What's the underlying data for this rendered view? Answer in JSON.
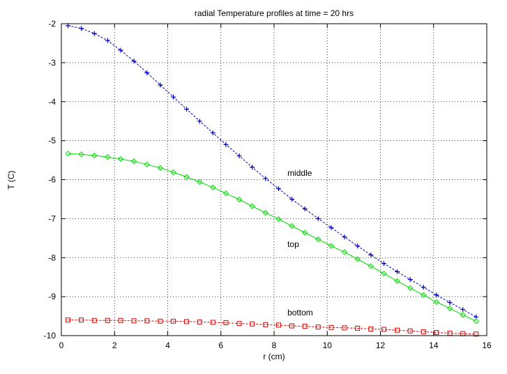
{
  "chart_data": {
    "type": "line",
    "title": "radial Temperature profiles at time = 20 hrs",
    "xlabel": "r (cm)",
    "ylabel": "T (C)",
    "xlim": [
      0,
      16
    ],
    "ylim": [
      -10,
      -2
    ],
    "xticks": [
      "0",
      "2",
      "4",
      "6",
      "8",
      "10",
      "12",
      "14",
      "16"
    ],
    "yticks": [
      "-2",
      "-3",
      "-4",
      "-5",
      "-6",
      "-7",
      "-8",
      "-9",
      "-10"
    ],
    "grid": true,
    "legend": "none",
    "x": [
      0.25,
      0.75,
      1.24,
      1.74,
      2.23,
      2.73,
      3.22,
      3.72,
      4.21,
      4.71,
      5.2,
      5.7,
      6.19,
      6.69,
      7.18,
      7.68,
      8.17,
      8.67,
      9.16,
      9.66,
      10.15,
      10.65,
      11.14,
      11.64,
      12.13,
      12.63,
      13.12,
      13.62,
      14.11,
      14.61,
      15.1,
      15.6
    ],
    "series": [
      {
        "name": "middle",
        "color": "#0000c8",
        "marker": "plus",
        "line_style": "dashed",
        "values": [
          -2.05,
          -2.12,
          -2.25,
          -2.43,
          -2.68,
          -2.96,
          -3.26,
          -3.57,
          -3.88,
          -4.19,
          -4.5,
          -4.8,
          -5.1,
          -5.39,
          -5.68,
          -5.97,
          -6.23,
          -6.5,
          -6.75,
          -7.0,
          -7.23,
          -7.47,
          -7.7,
          -7.93,
          -8.15,
          -8.36,
          -8.56,
          -8.76,
          -8.96,
          -9.15,
          -9.33,
          -9.52
        ]
      },
      {
        "name": "top",
        "color": "#00dd00",
        "marker": "diamond",
        "line_style": "solid",
        "values": [
          -5.33,
          -5.35,
          -5.38,
          -5.42,
          -5.47,
          -5.53,
          -5.61,
          -5.7,
          -5.81,
          -5.93,
          -6.06,
          -6.2,
          -6.35,
          -6.51,
          -6.68,
          -6.85,
          -7.01,
          -7.19,
          -7.36,
          -7.53,
          -7.7,
          -7.86,
          -8.04,
          -8.22,
          -8.41,
          -8.6,
          -8.78,
          -8.96,
          -9.14,
          -9.3,
          -9.47,
          -9.63
        ]
      },
      {
        "name": "bottom",
        "color": "#dd0000",
        "marker": "square",
        "line_style": "dashed",
        "values": [
          -9.6,
          -9.6,
          -9.61,
          -9.61,
          -9.61,
          -9.62,
          -9.62,
          -9.63,
          -9.63,
          -9.64,
          -9.65,
          -9.66,
          -9.67,
          -9.69,
          -9.7,
          -9.72,
          -9.73,
          -9.75,
          -9.76,
          -9.78,
          -9.79,
          -9.8,
          -9.81,
          -9.83,
          -9.84,
          -9.86,
          -9.88,
          -9.9,
          -9.92,
          -9.94,
          -9.95,
          -9.96
        ]
      }
    ],
    "annotations": [
      {
        "text": "middle",
        "x": 8.5,
        "y": -5.9
      },
      {
        "text": "top",
        "x": 8.5,
        "y": -7.73
      },
      {
        "text": "bottom",
        "x": 8.5,
        "y": -9.48
      }
    ]
  }
}
